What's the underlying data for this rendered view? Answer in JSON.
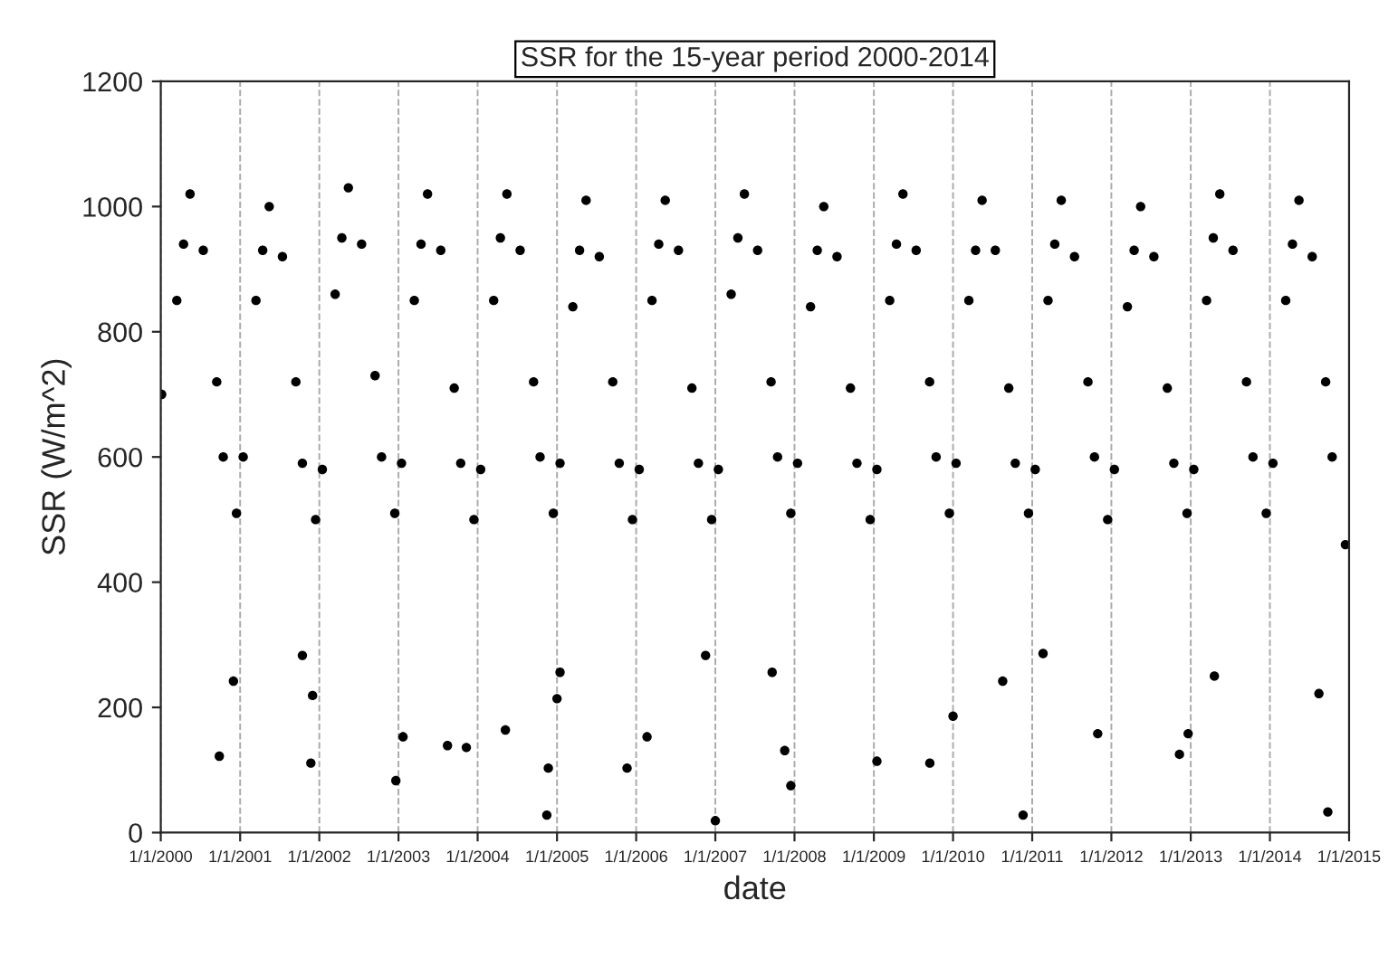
{
  "chart_data": {
    "type": "scatter",
    "title": "SSR for the 15-year period 2000-2014",
    "xlabel": "date",
    "ylabel": "SSR (W/m^2)",
    "xlim": [
      "2000-01-01",
      "2015-01-01"
    ],
    "ylim": [
      0,
      1200
    ],
    "yticks": [
      0,
      200,
      400,
      600,
      800,
      1000,
      1200
    ],
    "xticks": [
      {
        "value": "2000-01-01",
        "label": "1/1/2000"
      },
      {
        "value": "2001-01-01",
        "label": "1/1/2001"
      },
      {
        "value": "2002-01-01",
        "label": "1/1/2002"
      },
      {
        "value": "2003-01-01",
        "label": "1/1/2003"
      },
      {
        "value": "2004-01-01",
        "label": "1/1/2004"
      },
      {
        "value": "2005-01-01",
        "label": "1/1/2005"
      },
      {
        "value": "2006-01-01",
        "label": "1/1/2006"
      },
      {
        "value": "2007-01-01",
        "label": "1/1/2007"
      },
      {
        "value": "2008-01-01",
        "label": "1/1/2008"
      },
      {
        "value": "2009-01-01",
        "label": "1/1/2009"
      },
      {
        "value": "2010-01-01",
        "label": "1/1/2010"
      },
      {
        "value": "2011-01-01",
        "label": "1/1/2011"
      },
      {
        "value": "2012-01-01",
        "label": "1/1/2012"
      },
      {
        "value": "2013-01-01",
        "label": "1/1/2013"
      },
      {
        "value": "2014-01-01",
        "label": "1/1/2014"
      },
      {
        "value": "2015-01-01",
        "label": "1/1/2015"
      }
    ],
    "grid": "x",
    "marker": "circle",
    "series": [
      {
        "color": "#000000",
        "x": [
          "2000-01-05",
          "2000-03-15",
          "2000-04-15",
          "2000-05-15",
          "2000-07-15",
          "2000-09-15",
          "2000-10-15",
          "2000-12-15",
          "2001-01-15",
          "2001-03-15",
          "2001-04-15",
          "2001-05-15",
          "2001-07-15",
          "2001-09-15",
          "2001-10-15",
          "2001-12-15",
          "2002-01-15",
          "2002-03-15",
          "2002-04-15",
          "2002-05-15",
          "2002-07-15",
          "2002-09-15",
          "2002-10-15",
          "2002-12-15",
          "2003-01-15",
          "2003-03-15",
          "2003-04-15",
          "2003-05-15",
          "2003-07-15",
          "2003-09-15",
          "2003-10-15",
          "2003-12-15",
          "2004-01-15",
          "2004-03-15",
          "2004-04-15",
          "2004-05-15",
          "2004-07-15",
          "2004-09-15",
          "2004-10-15",
          "2004-12-15",
          "2005-01-15",
          "2005-03-15",
          "2005-04-15",
          "2005-05-15",
          "2005-07-15",
          "2005-09-15",
          "2005-10-15",
          "2005-12-15",
          "2006-01-15",
          "2006-03-15",
          "2006-04-15",
          "2006-05-15",
          "2006-07-15",
          "2006-09-15",
          "2006-10-15",
          "2006-12-15",
          "2007-01-15",
          "2007-03-15",
          "2007-04-15",
          "2007-05-15",
          "2007-07-15",
          "2007-09-15",
          "2007-10-15",
          "2007-12-15",
          "2008-01-15",
          "2008-03-15",
          "2008-04-15",
          "2008-05-15",
          "2008-07-15",
          "2008-09-15",
          "2008-10-15",
          "2008-12-15",
          "2009-01-15",
          "2009-03-15",
          "2009-04-15",
          "2009-05-15",
          "2009-07-15",
          "2009-09-15",
          "2009-10-15",
          "2009-12-15",
          "2010-01-15",
          "2010-03-15",
          "2010-04-15",
          "2010-05-15",
          "2010-07-15",
          "2010-09-15",
          "2010-10-15",
          "2010-12-15",
          "2011-01-15",
          "2011-03-15",
          "2011-04-15",
          "2011-05-15",
          "2011-07-15",
          "2011-09-15",
          "2011-10-15",
          "2011-12-15",
          "2012-01-15",
          "2012-03-15",
          "2012-04-15",
          "2012-05-15",
          "2012-07-15",
          "2012-09-15",
          "2012-10-15",
          "2012-12-15",
          "2013-01-15",
          "2013-03-15",
          "2013-04-15",
          "2013-05-15",
          "2013-07-15",
          "2013-09-15",
          "2013-10-15",
          "2013-12-15",
          "2014-01-15",
          "2014-03-15",
          "2014-04-15",
          "2014-05-15",
          "2014-07-15",
          "2014-09-15",
          "2014-10-15",
          "2014-12-15",
          "2000-09-27",
          "2000-12-01",
          "2001-11-23",
          "2001-12-01",
          "2001-10-15",
          "2002-12-20",
          "2003-01-22",
          "2003-08-15",
          "2003-11-10",
          "2004-05-08",
          "2004-11-15",
          "2004-11-22",
          "2005-01-01",
          "2005-01-15",
          "2005-11-20",
          "2006-02-20",
          "2007-01-01",
          "2006-11-17",
          "2007-12-15",
          "2007-11-17",
          "2007-09-20",
          "2009-01-15",
          "2009-09-16",
          "2010-01-01",
          "2010-08-18",
          "2010-11-20",
          "2011-02-20",
          "2011-10-30",
          "2012-12-20",
          "2012-11-10",
          "2013-04-20",
          "2014-08-15",
          "2014-09-25"
        ],
        "values": [
          700,
          850,
          940,
          1020,
          930,
          720,
          600,
          510,
          600,
          850,
          930,
          1000,
          920,
          720,
          590,
          500,
          580,
          860,
          950,
          1030,
          940,
          730,
          600,
          510,
          590,
          850,
          940,
          1020,
          930,
          710,
          590,
          500,
          580,
          850,
          950,
          1020,
          930,
          720,
          600,
          510,
          590,
          840,
          930,
          1010,
          920,
          720,
          590,
          500,
          580,
          850,
          940,
          1010,
          930,
          710,
          590,
          500,
          580,
          860,
          950,
          1020,
          930,
          720,
          600,
          510,
          590,
          840,
          930,
          1000,
          920,
          710,
          590,
          500,
          580,
          850,
          940,
          1020,
          930,
          720,
          600,
          510,
          590,
          850,
          930,
          1010,
          930,
          710,
          590,
          510,
          580,
          850,
          940,
          1010,
          920,
          720,
          600,
          500,
          580,
          840,
          930,
          1000,
          920,
          710,
          590,
          510,
          580,
          850,
          950,
          1020,
          930,
          720,
          600,
          510,
          590,
          850,
          940,
          1010,
          920,
          720,
          600,
          460,
          122,
          242,
          111,
          219,
          283,
          83,
          153,
          139,
          136,
          164,
          28,
          103,
          214,
          256,
          103,
          153,
          19,
          283,
          75,
          131,
          256,
          114,
          111,
          186,
          242,
          28,
          286,
          158,
          158,
          125,
          250,
          222,
          33
        ]
      }
    ]
  }
}
